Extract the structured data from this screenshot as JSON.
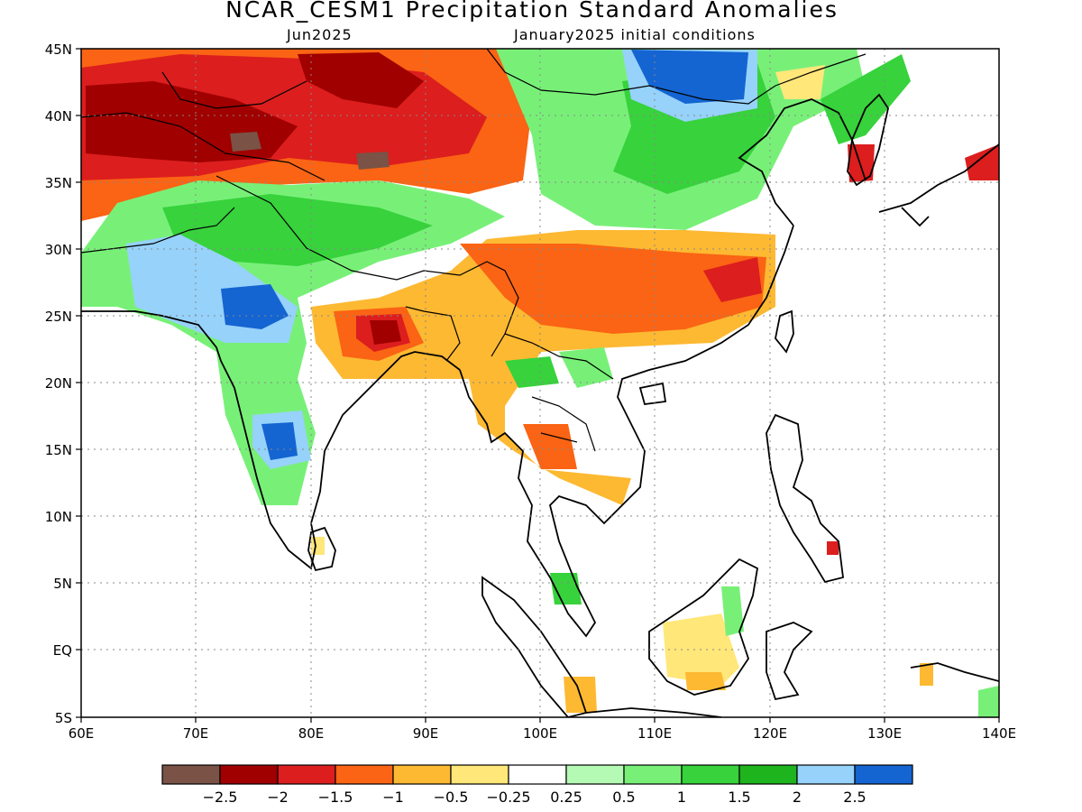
{
  "title": "NCAR_CESM1 Precipitation Standard Anomalies",
  "forecast_month": "Jun2025",
  "init_conditions": "January2025 initial conditions",
  "map": {
    "lon_range": [
      60,
      140
    ],
    "lat_range": [
      -5,
      45
    ],
    "lat_ticks": [
      "45N",
      "40N",
      "35N",
      "30N",
      "25N",
      "20N",
      "15N",
      "10N",
      "5N",
      "EQ",
      "5S"
    ],
    "lon_ticks": [
      "60E",
      "70E",
      "80E",
      "90E",
      "100E",
      "110E",
      "120E",
      "130E",
      "140E"
    ]
  },
  "colorbar": {
    "colors": [
      "#7a5246",
      "#a00000",
      "#dc1e1e",
      "#fa6414",
      "#fdb932",
      "#ffe77a",
      "#ffffff",
      "#b4fab4",
      "#78f078",
      "#37d23c",
      "#1eb41e",
      "#96d2fa",
      "#1464d2"
    ],
    "labels": [
      "-2.5",
      "-2",
      "-1.5",
      "-1",
      "-0.5",
      "-0.25",
      "0.25",
      "0.5",
      "1",
      "1.5",
      "2",
      "2.5"
    ]
  }
}
